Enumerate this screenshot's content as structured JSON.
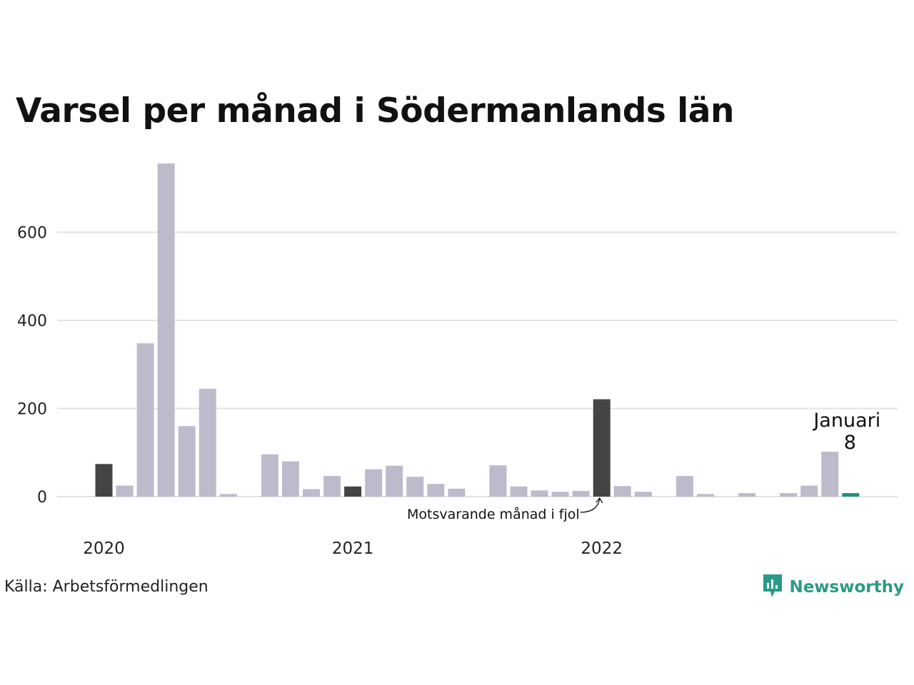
{
  "title": "Varsel per månad i Södermanlands län",
  "source": "Källa: Arbetsförmedlingen",
  "brand": {
    "name": "Newsworthy",
    "icon": "bar-chart-bubble-icon",
    "color": "#2a9a86"
  },
  "chart_data": {
    "type": "bar",
    "x": [
      "2020-01",
      "2020-02",
      "2020-03",
      "2020-04",
      "2020-05",
      "2020-06",
      "2020-07",
      "2020-08",
      "2020-09",
      "2020-10",
      "2020-11",
      "2020-12",
      "2021-01",
      "2021-02",
      "2021-03",
      "2021-04",
      "2021-05",
      "2021-06",
      "2021-07",
      "2021-08",
      "2021-09",
      "2021-10",
      "2021-11",
      "2021-12",
      "2022-01",
      "2022-02",
      "2022-03",
      "2022-04",
      "2022-05",
      "2022-06",
      "2022-07",
      "2022-08",
      "2022-09",
      "2022-10",
      "2022-11",
      "2022-12",
      "2023-01"
    ],
    "values": [
      74,
      25,
      348,
      756,
      160,
      245,
      6,
      0,
      96,
      80,
      17,
      47,
      23,
      62,
      70,
      45,
      29,
      18,
      0,
      71,
      23,
      14,
      11,
      13,
      221,
      24,
      11,
      0,
      47,
      6,
      0,
      8,
      0,
      8,
      25,
      102,
      8
    ],
    "ylim": [
      0,
      760
    ],
    "yticks": [
      0,
      200,
      400,
      600
    ],
    "xtick_labels": [
      {
        "at": "2020-01",
        "label": "2020"
      },
      {
        "at": "2021-01",
        "label": "2021"
      },
      {
        "at": "2022-01",
        "label": "2022"
      }
    ],
    "grid": true,
    "colors": {
      "default": "#bdbbcb",
      "same_month": "#444444",
      "current": "#1f9080",
      "grid": "#e3e3e3"
    },
    "same_month_indices": [
      0,
      12,
      24
    ],
    "current_index": 36,
    "annotations": {
      "same_month_text": "Motsvarande månad i fjol",
      "current_month_label": "Januari",
      "current_value_label": "8"
    }
  }
}
